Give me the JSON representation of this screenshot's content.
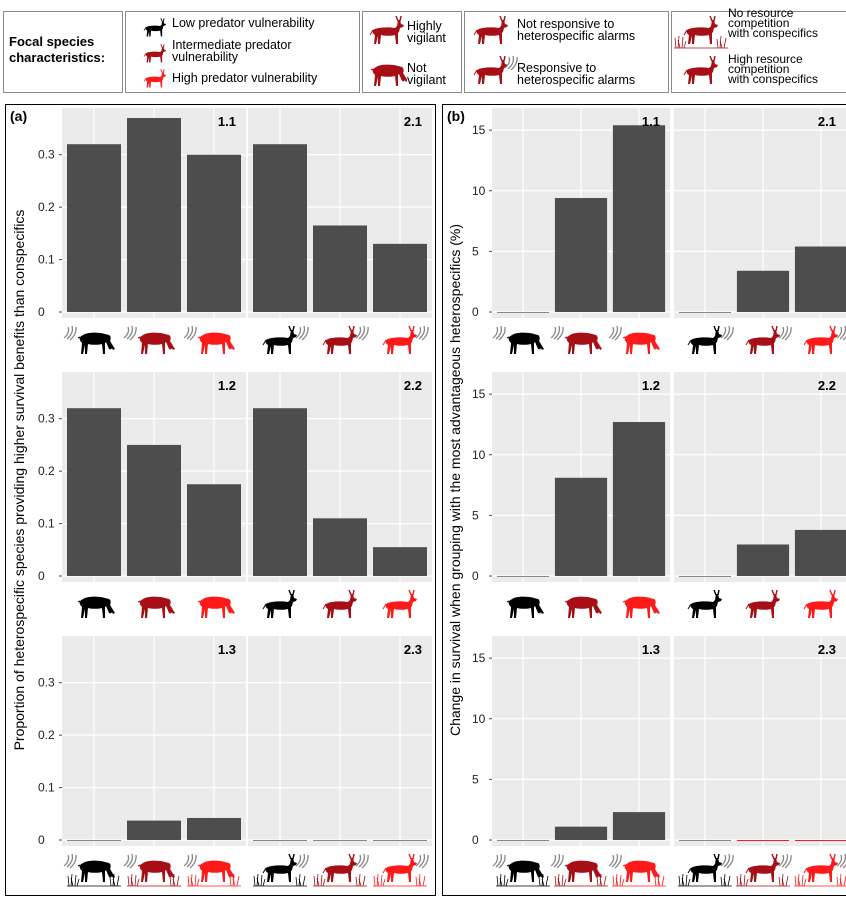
{
  "legend": {
    "title_line1": "Focal species",
    "title_line2": "characteristics:",
    "low_vulnerability": "Low predator vulnerability",
    "intermediate_vulnerability_line1": "Intermediate predator",
    "intermediate_vulnerability_line2": "vulnerability",
    "high_vulnerability": "High predator vulnerability",
    "highly_vigilant_line1": "Highly",
    "highly_vigilant_line2": "vigilant",
    "not_vigilant_line1": "Not",
    "not_vigilant_line2": "vigilant",
    "not_responsive_line1": "Not responsive to",
    "not_responsive_line2": "heterospecific alarms",
    "responsive_line1": "Responsive to",
    "responsive_line2": "heterospecific alarms",
    "no_competition_line1": "No resource",
    "no_competition_line2": "competition",
    "no_competition_line3": "with conspecifics",
    "high_competition_line1": "High resource",
    "high_competition_line2": "competition",
    "high_competition_line3": "with conspecifics"
  },
  "colors": {
    "bar": "#4d4d4d",
    "panel_bg": "#ebebeb",
    "grid": "#ffffff",
    "low": "#000000",
    "intermediate": "#a50f15",
    "high": "#ff1a1a"
  },
  "icon_names": [
    "grazing-antelope-icon",
    "vigilant-antelope-icon",
    "alarm-wave-icon",
    "grass-icon"
  ],
  "chart_data": [
    {
      "panel": "(a)",
      "type": "bar",
      "ylabel": "Proportion of heterospecific species providing higher survival benefits than conspecifics",
      "ylim": [
        0,
        0.37
      ],
      "yticks": [
        "0",
        "0.1",
        "0.2",
        "0.3"
      ],
      "grid": true,
      "categories": [
        "Low predator vulnerability",
        "Intermediate predator vulnerability",
        "High predator vulnerability"
      ],
      "facets": [
        {
          "label": "1.1",
          "values": [
            0.32,
            0.37,
            0.3
          ],
          "icon_style": "not-vigilant, responsive"
        },
        {
          "label": "2.1",
          "values": [
            0.32,
            0.165,
            0.13
          ],
          "icon_style": "highly-vigilant, responsive"
        },
        {
          "label": "1.2",
          "values": [
            0.32,
            0.25,
            0.175
          ],
          "icon_style": "not-vigilant"
        },
        {
          "label": "2.2",
          "values": [
            0.32,
            0.11,
            0.055
          ],
          "icon_style": "highly-vigilant"
        },
        {
          "label": "1.3",
          "values": [
            0,
            0.037,
            0.042
          ],
          "icon_style": "not-vigilant, responsive, high-competition"
        },
        {
          "label": "2.3",
          "values": [
            0,
            0,
            0
          ],
          "icon_style": "highly-vigilant, responsive, high-competition"
        }
      ]
    },
    {
      "panel": "(b)",
      "type": "bar",
      "ylabel": "Change in survival when grouping with the most advantageous heterospecifics (%)",
      "ylim": [
        0,
        16
      ],
      "yticks": [
        "0",
        "5",
        "10",
        "15"
      ],
      "grid": true,
      "categories": [
        "Low predator vulnerability",
        "Intermediate predator vulnerability",
        "High predator vulnerability"
      ],
      "facets": [
        {
          "label": "1.1",
          "values": [
            0,
            9.4,
            15.4
          ],
          "icon_style": "not-vigilant, responsive"
        },
        {
          "label": "2.1",
          "values": [
            0.1,
            3.4,
            5.4
          ],
          "icon_style": "highly-vigilant, responsive"
        },
        {
          "label": "1.2",
          "values": [
            0.1,
            8.1,
            12.7
          ],
          "icon_style": "not-vigilant"
        },
        {
          "label": "2.2",
          "values": [
            0.1,
            2.6,
            3.8
          ],
          "icon_style": "highly-vigilant"
        },
        {
          "label": "1.3",
          "values": [
            0,
            1.1,
            2.3
          ],
          "icon_style": "not-vigilant, responsive, high-competition"
        },
        {
          "label": "2.3",
          "values": [
            0,
            -0.05,
            -0.05
          ],
          "icon_style": "highly-vigilant, responsive, high-competition"
        }
      ]
    }
  ]
}
